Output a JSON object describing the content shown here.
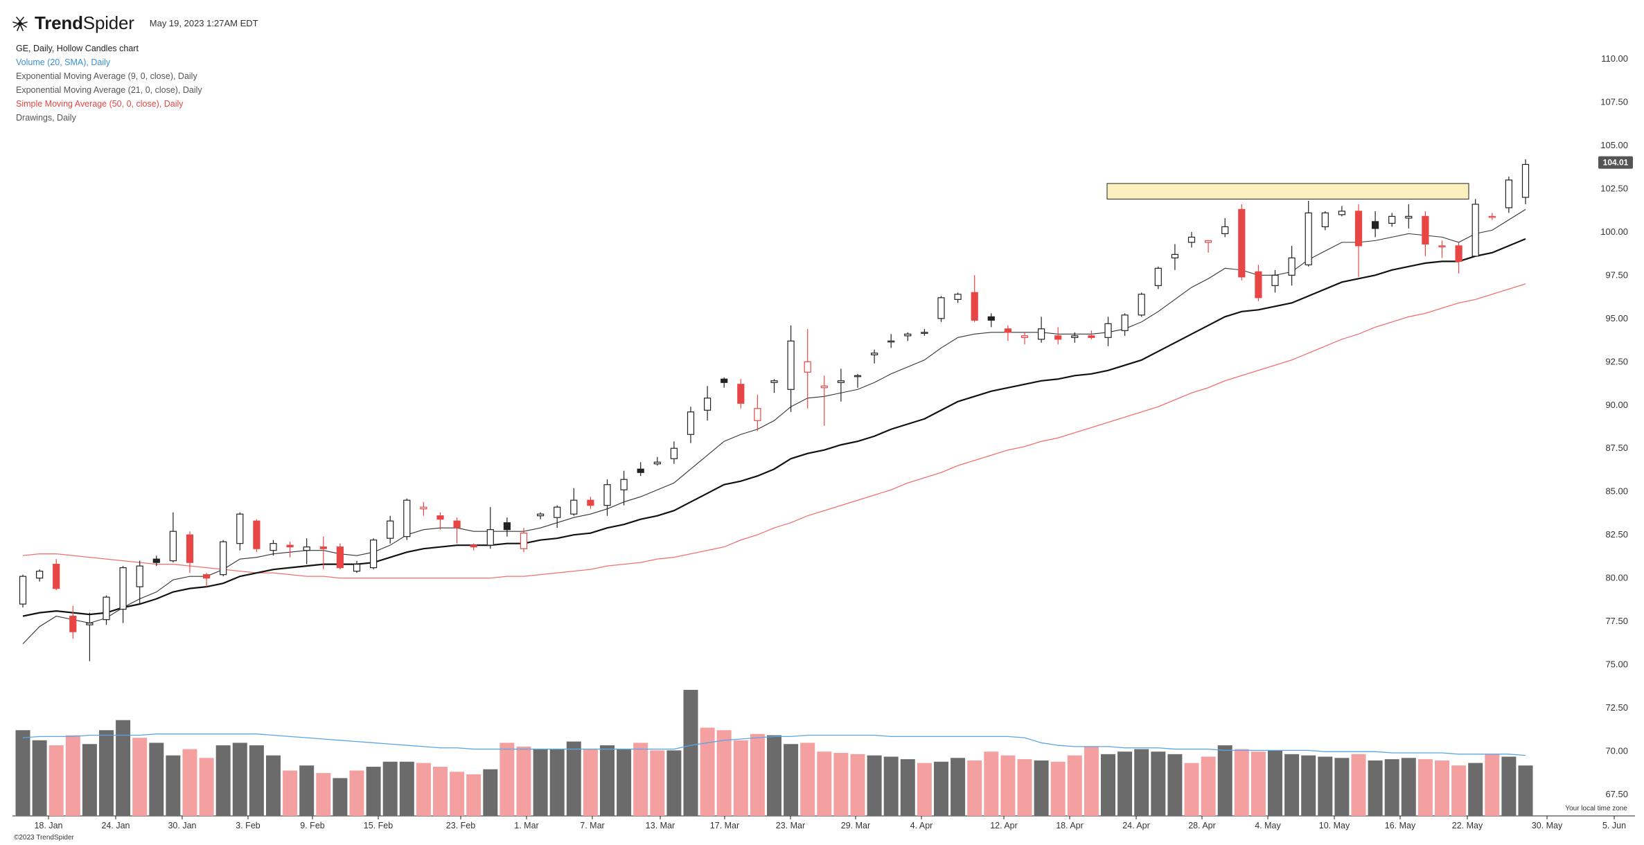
{
  "header": {
    "brand_bold": "Trend",
    "brand_light": "Spider",
    "logo_icon": "trendspider-logo-icon",
    "datetime": "May 19, 2023 1:27AM EDT"
  },
  "legend": [
    {
      "text": "GE, Daily, Hollow Candles chart",
      "color": "#222222"
    },
    {
      "text": "Volume (20, SMA), Daily",
      "color": "#3a8fd8"
    },
    {
      "text": "Exponential Moving Average (9, 0, close), Daily",
      "color": "#555555"
    },
    {
      "text": "Exponential Moving Average (21, 0, close), Daily",
      "color": "#555555"
    },
    {
      "text": "Simple Moving Average (50, 0, close), Daily",
      "color": "#e84545"
    },
    {
      "text": "Drawings, Daily",
      "color": "#555555"
    }
  ],
  "footer": {
    "copyright": "©2023 TrendSpider",
    "timezone": "Your local time zone"
  },
  "chart_data": {
    "type": "candlestick",
    "symbol": "GE",
    "timeframe": "Daily",
    "style": "Hollow Candles",
    "colors": {
      "up": "#222222",
      "down": "#e84545",
      "vol_up": "#6b6b6b",
      "vol_down": "#f5a0a0",
      "ema9": "#333333",
      "ema21": "#111111",
      "sma50": "#f07070",
      "vol_sma": "#5aa6e6",
      "zone_fill": "#fdf0c0",
      "zone_stroke": "#222222"
    },
    "y_ticks": [
      "110.00",
      "107.50",
      "105.00",
      "102.50",
      "100.00",
      "97.50",
      "95.00",
      "92.50",
      "90.00",
      "87.50",
      "85.00",
      "82.50",
      "80.00",
      "77.50",
      "75.00",
      "72.50",
      "70.00",
      "67.50"
    ],
    "price_range": [
      67.5,
      110.0
    ],
    "last_price": "104.01",
    "x_ticks": [
      "18. Jan",
      "24. Jan",
      "30. Jan",
      "3. Feb",
      "9. Feb",
      "15. Feb",
      "23. Feb",
      "1. Mar",
      "7. Mar",
      "13. Mar",
      "17. Mar",
      "23. Mar",
      "29. Mar",
      "4. Apr",
      "12. Apr",
      "18. Apr",
      "24. Apr",
      "28. Apr",
      "4. May",
      "10. May",
      "16. May",
      "22. May",
      "30. May",
      "5. Jun"
    ],
    "resistance_zone": [
      101.9,
      102.8
    ],
    "candles": [
      [
        78.5,
        80.1,
        78.3,
        80.2
      ],
      [
        80.0,
        80.4,
        79.8,
        80.5
      ],
      [
        80.8,
        79.4,
        79.3,
        81.1
      ],
      [
        77.8,
        76.9,
        76.5,
        78.4
      ],
      [
        77.3,
        77.4,
        75.2,
        78.0
      ],
      [
        77.6,
        78.9,
        77.3,
        79.0
      ],
      [
        78.2,
        80.6,
        77.4,
        80.7
      ],
      [
        79.5,
        80.7,
        78.5,
        81.0
      ],
      [
        81.1,
        80.9,
        80.7,
        81.3
      ],
      [
        81.0,
        82.7,
        80.9,
        83.8
      ],
      [
        82.5,
        80.9,
        80.3,
        82.7
      ],
      [
        80.2,
        80.0,
        79.5,
        80.3
      ],
      [
        80.2,
        82.1,
        80.1,
        82.2
      ],
      [
        82.0,
        83.7,
        81.6,
        83.8
      ],
      [
        83.3,
        81.7,
        81.5,
        83.4
      ],
      [
        81.6,
        82.0,
        81.3,
        82.2
      ],
      [
        81.9,
        81.8,
        81.2,
        82.1
      ],
      [
        81.6,
        81.8,
        80.8,
        82.3
      ],
      [
        81.8,
        81.7,
        80.5,
        82.4
      ],
      [
        81.8,
        80.6,
        80.5,
        82.0
      ],
      [
        80.4,
        80.8,
        80.3,
        81.0
      ],
      [
        80.6,
        82.2,
        80.5,
        82.3
      ],
      [
        82.3,
        83.3,
        82.0,
        83.6
      ],
      [
        82.4,
        84.5,
        82.2,
        84.6
      ],
      [
        84.0,
        84.1,
        83.6,
        84.4
      ],
      [
        83.6,
        83.4,
        82.8,
        83.8
      ],
      [
        83.3,
        82.9,
        82.0,
        83.5
      ],
      [
        81.9,
        81.8,
        81.6,
        82.0
      ],
      [
        81.9,
        82.8,
        81.7,
        84.1
      ],
      [
        83.2,
        82.8,
        82.4,
        83.5
      ],
      [
        81.7,
        82.6,
        81.5,
        82.9
      ],
      [
        83.6,
        83.7,
        83.4,
        83.8
      ],
      [
        83.5,
        84.1,
        82.9,
        84.2
      ],
      [
        83.7,
        84.5,
        83.6,
        85.2
      ],
      [
        84.5,
        84.2,
        84.0,
        84.7
      ],
      [
        84.2,
        85.4,
        83.6,
        85.7
      ],
      [
        85.1,
        85.7,
        84.2,
        86.2
      ],
      [
        86.3,
        86.1,
        85.9,
        86.7
      ],
      [
        86.6,
        86.7,
        86.5,
        87.0
      ],
      [
        86.9,
        87.5,
        86.6,
        87.9
      ],
      [
        88.3,
        89.6,
        87.8,
        89.9
      ],
      [
        89.7,
        90.4,
        89.1,
        91.1
      ],
      [
        91.5,
        91.3,
        91.0,
        91.6
      ],
      [
        91.2,
        90.1,
        89.8,
        91.5
      ],
      [
        89.1,
        89.8,
        88.5,
        90.6
      ],
      [
        91.3,
        91.4,
        90.7,
        91.5
      ],
      [
        90.9,
        93.7,
        89.6,
        94.6
      ],
      [
        91.9,
        92.5,
        89.8,
        94.4
      ],
      [
        91.0,
        91.1,
        88.8,
        91.7
      ],
      [
        91.3,
        91.4,
        90.2,
        92.1
      ],
      [
        91.7,
        91.7,
        91.0,
        91.8
      ],
      [
        92.9,
        93.0,
        92.4,
        93.2
      ],
      [
        93.7,
        93.7,
        93.3,
        94.1
      ],
      [
        94.0,
        94.1,
        93.7,
        94.2
      ],
      [
        94.2,
        94.2,
        94.0,
        94.4
      ],
      [
        95.0,
        96.2,
        94.8,
        96.3
      ],
      [
        96.1,
        96.4,
        95.9,
        96.5
      ],
      [
        96.5,
        94.9,
        94.8,
        97.5
      ],
      [
        95.1,
        94.9,
        94.5,
        95.3
      ],
      [
        94.4,
        94.2,
        93.7,
        94.6
      ],
      [
        93.9,
        94.0,
        93.5,
        94.2
      ],
      [
        93.8,
        94.4,
        93.6,
        95.1
      ],
      [
        94.0,
        93.8,
        93.5,
        94.5
      ],
      [
        93.9,
        94.0,
        93.6,
        94.2
      ],
      [
        94.0,
        93.9,
        93.8,
        94.3
      ],
      [
        93.9,
        94.7,
        93.4,
        95.1
      ],
      [
        94.3,
        95.2,
        94.0,
        95.3
      ],
      [
        95.2,
        96.4,
        95.1,
        96.5
      ],
      [
        96.9,
        97.9,
        96.7,
        98.0
      ],
      [
        98.5,
        98.7,
        97.8,
        99.3
      ],
      [
        99.4,
        99.7,
        99.1,
        100.0
      ],
      [
        99.4,
        99.5,
        98.8,
        99.5
      ],
      [
        99.9,
        100.3,
        99.7,
        100.8
      ],
      [
        101.3,
        97.4,
        97.2,
        101.6
      ],
      [
        97.7,
        96.2,
        96.0,
        98.1
      ],
      [
        96.9,
        97.5,
        96.5,
        97.8
      ],
      [
        97.5,
        98.5,
        96.9,
        99.2
      ],
      [
        98.1,
        101.1,
        98.0,
        101.8
      ],
      [
        100.3,
        101.1,
        100.1,
        101.2
      ],
      [
        101.0,
        101.2,
        100.9,
        101.5
      ],
      [
        101.2,
        99.2,
        97.4,
        101.6
      ],
      [
        100.6,
        100.2,
        99.7,
        101.2
      ],
      [
        100.5,
        100.9,
        100.3,
        101.1
      ],
      [
        100.8,
        100.9,
        100.2,
        101.6
      ],
      [
        100.9,
        99.3,
        98.6,
        101.2
      ],
      [
        99.2,
        99.2,
        98.5,
        99.5
      ],
      [
        99.2,
        98.3,
        97.6,
        99.4
      ],
      [
        98.6,
        101.6,
        98.6,
        101.9
      ],
      [
        100.9,
        100.9,
        100.7,
        101.1
      ],
      [
        101.4,
        103.0,
        101.1,
        103.2
      ],
      [
        102.0,
        103.9,
        101.6,
        104.2
      ]
    ],
    "volume_up": [
      true,
      true,
      false,
      false,
      true,
      true,
      true,
      false,
      true,
      true,
      false,
      false,
      true,
      true,
      true,
      true,
      false,
      true,
      false,
      true,
      false,
      true,
      true,
      true,
      false,
      false,
      false,
      false,
      true,
      false,
      false,
      true,
      true,
      true,
      false,
      true,
      true,
      false,
      false,
      true,
      true,
      false,
      false,
      false,
      false,
      true,
      true,
      false,
      false,
      false,
      false,
      true,
      true,
      true,
      false,
      true,
      true,
      false,
      false,
      false,
      false,
      true,
      false,
      false,
      false,
      true,
      true,
      true,
      true,
      true,
      false,
      false,
      true,
      false,
      false,
      true,
      true,
      true,
      true,
      true,
      false,
      true,
      true,
      true,
      false,
      false,
      false,
      true,
      false,
      true,
      true
    ],
    "volume_level": [
      68,
      60,
      56,
      64,
      57,
      68,
      76,
      62,
      58,
      48,
      53,
      46,
      56,
      58,
      56,
      48,
      36,
      40,
      34,
      30,
      36,
      39,
      43,
      43,
      42,
      39,
      35,
      33,
      37,
      58,
      55,
      53,
      53,
      59,
      53,
      56,
      53,
      58,
      52,
      52,
      100,
      70,
      68,
      60,
      65,
      64,
      57,
      58,
      51,
      50,
      49,
      48,
      47,
      45,
      42,
      43,
      46,
      44,
      51,
      48,
      45,
      44,
      43,
      48,
      55,
      49,
      51,
      53,
      51,
      49,
      42,
      47,
      56,
      53,
      51,
      52,
      49,
      48,
      47,
      46,
      49,
      44,
      45,
      46,
      45,
      44,
      40,
      42,
      49,
      47,
      40
    ],
    "ema9": [
      76.2,
      77.2,
      77.8,
      77.6,
      77.4,
      77.7,
      78.3,
      78.8,
      79.2,
      79.9,
      80.1,
      80.1,
      80.5,
      81.1,
      81.2,
      81.4,
      81.5,
      81.6,
      81.6,
      81.4,
      81.3,
      81.5,
      81.9,
      82.5,
      82.8,
      82.9,
      82.9,
      82.7,
      82.7,
      82.7,
      82.7,
      82.9,
      83.2,
      83.5,
      83.7,
      84.0,
      84.4,
      84.7,
      85.1,
      85.5,
      86.3,
      87.1,
      87.9,
      88.3,
      88.6,
      89.1,
      89.9,
      90.4,
      90.5,
      90.7,
      90.9,
      91.3,
      91.8,
      92.2,
      92.6,
      93.3,
      93.9,
      94.1,
      94.2,
      94.2,
      94.2,
      94.2,
      94.1,
      94.1,
      94.1,
      94.2,
      94.4,
      94.8,
      95.4,
      96.1,
      96.8,
      97.3,
      97.9,
      97.8,
      97.5,
      97.5,
      97.7,
      98.4,
      98.9,
      99.4,
      99.4,
      99.5,
      99.7,
      99.9,
      99.8,
      99.7,
      99.4,
      99.9,
      100.1,
      100.7,
      101.3
    ],
    "ema21": [
      77.8,
      78.0,
      78.1,
      78.0,
      77.9,
      78.0,
      78.3,
      78.5,
      78.8,
      79.2,
      79.4,
      79.5,
      79.7,
      80.1,
      80.3,
      80.5,
      80.6,
      80.7,
      80.8,
      80.8,
      80.8,
      80.9,
      81.2,
      81.5,
      81.7,
      81.8,
      81.9,
      81.9,
      81.9,
      82.0,
      82.0,
      82.2,
      82.3,
      82.5,
      82.6,
      82.9,
      83.1,
      83.4,
      83.6,
      83.9,
      84.4,
      84.9,
      85.4,
      85.6,
      85.9,
      86.3,
      86.9,
      87.2,
      87.4,
      87.7,
      87.9,
      88.2,
      88.6,
      88.9,
      89.2,
      89.7,
      90.2,
      90.5,
      90.8,
      91.0,
      91.2,
      91.4,
      91.5,
      91.7,
      91.8,
      92.0,
      92.3,
      92.6,
      93.1,
      93.6,
      94.1,
      94.6,
      95.1,
      95.4,
      95.5,
      95.7,
      95.9,
      96.3,
      96.7,
      97.1,
      97.3,
      97.5,
      97.8,
      98.0,
      98.2,
      98.3,
      98.3,
      98.6,
      98.8,
      99.2,
      99.6
    ],
    "sma50": [
      81.3,
      81.4,
      81.4,
      81.3,
      81.2,
      81.1,
      81.0,
      80.9,
      80.8,
      80.8,
      80.7,
      80.6,
      80.5,
      80.4,
      80.3,
      80.3,
      80.2,
      80.1,
      80.1,
      80.0,
      80.0,
      80.0,
      80.0,
      80.0,
      80.0,
      80.0,
      80.0,
      80.0,
      80.0,
      80.1,
      80.1,
      80.2,
      80.3,
      80.4,
      80.5,
      80.7,
      80.8,
      80.9,
      81.1,
      81.2,
      81.4,
      81.6,
      81.8,
      82.2,
      82.5,
      82.9,
      83.2,
      83.6,
      83.9,
      84.2,
      84.5,
      84.8,
      85.1,
      85.5,
      85.8,
      86.1,
      86.5,
      86.8,
      87.1,
      87.4,
      87.6,
      87.9,
      88.1,
      88.4,
      88.7,
      89.0,
      89.3,
      89.6,
      89.9,
      90.3,
      90.7,
      91.0,
      91.4,
      91.7,
      92.0,
      92.3,
      92.6,
      93.0,
      93.4,
      93.8,
      94.1,
      94.5,
      94.8,
      95.1,
      95.3,
      95.6,
      95.9,
      96.1,
      96.4,
      96.7,
      97.0
    ],
    "vol_sma": [
      62,
      63,
      63,
      63,
      64,
      64,
      64,
      64,
      65,
      65,
      65,
      65,
      65,
      65,
      65,
      64,
      63,
      62,
      61,
      60,
      59,
      58,
      57,
      56,
      55,
      54,
      54,
      53,
      53,
      53,
      53,
      53,
      53,
      53,
      53,
      53,
      53,
      53,
      53,
      53,
      56,
      58,
      60,
      61,
      62,
      63,
      63,
      64,
      64,
      64,
      64,
      64,
      63,
      63,
      63,
      63,
      63,
      63,
      63,
      63,
      62,
      58,
      56,
      55,
      55,
      55,
      54,
      54,
      54,
      53,
      53,
      53,
      52,
      52,
      52,
      52,
      52,
      52,
      51,
      51,
      51,
      51,
      50,
      50,
      50,
      50,
      49,
      49,
      49,
      49,
      48
    ]
  }
}
